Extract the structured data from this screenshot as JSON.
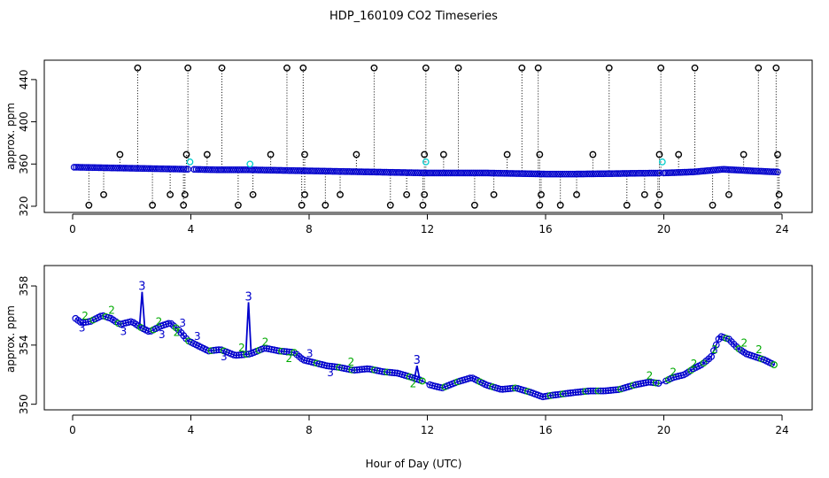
{
  "title": "HDP_160109  CO2 Timeseries",
  "xlabel": "Hour of Day (UTC)",
  "colors": {
    "raw": "#000000",
    "good": "#0000cc",
    "flag1": "#00cccc",
    "flag2": "#00aa00",
    "flag3": "#0000cc"
  },
  "chart_data": [
    {
      "type": "scatter",
      "ylabel": "approx. ppm",
      "xlim": [
        0,
        24
      ],
      "ylim": [
        320,
        455
      ],
      "xticks": [
        "0",
        "4",
        "8",
        "12",
        "16",
        "20",
        "24"
      ],
      "yticks": [
        "320",
        "360",
        "400",
        "440"
      ],
      "series": [
        {
          "role": "baseline",
          "x": [
            0.0,
            1.0,
            2.0,
            3.0,
            4.0,
            5.0,
            6.0,
            7.0,
            8.0,
            9.0,
            10.0,
            11.0,
            12.0,
            13.0,
            14.0,
            15.0,
            16.0,
            17.0,
            18.0,
            19.0,
            20.0,
            21.0,
            22.0,
            23.0,
            23.8
          ],
          "y": [
            357,
            356.5,
            356,
            355.5,
            355,
            354.5,
            354.5,
            354,
            353.5,
            353,
            352.5,
            352,
            351.5,
            351.5,
            351.5,
            351,
            350.5,
            350.5,
            350.8,
            351.2,
            351.5,
            352.5,
            355,
            353.5,
            352.5
          ]
        },
        {
          "role": "high-spikes",
          "x": [
            2.2,
            3.9,
            5.05,
            7.25,
            7.8,
            10.2,
            11.95,
            13.05,
            15.2,
            15.75,
            18.15,
            19.9,
            21.05,
            23.2,
            23.8
          ],
          "y": [
            451,
            451,
            451,
            451,
            451,
            451,
            451,
            451,
            451,
            451,
            451,
            451,
            451,
            451,
            451
          ]
        },
        {
          "role": "mid-spikes",
          "x": [
            1.6,
            3.85,
            4.55,
            6.7,
            7.85,
            9.6,
            11.9,
            12.55,
            14.7,
            15.8,
            17.6,
            19.85,
            20.5,
            22.7,
            23.85
          ],
          "y": [
            369,
            369,
            369,
            369,
            369,
            369,
            369,
            369,
            369,
            369,
            369,
            369,
            369,
            369,
            369
          ]
        },
        {
          "role": "low-spikes",
          "x": [
            0.55,
            1.05,
            2.7,
            3.3,
            3.75,
            3.8,
            5.6,
            6.1,
            7.75,
            7.85,
            8.55,
            9.05,
            10.75,
            11.3,
            11.85,
            11.9,
            13.6,
            14.25,
            15.8,
            15.85,
            16.5,
            17.05,
            18.75,
            19.35,
            19.8,
            19.85,
            21.65,
            22.2,
            23.85,
            23.9
          ],
          "y": [
            321,
            331,
            321,
            331,
            321,
            331,
            321,
            331,
            321,
            331,
            321,
            331,
            321,
            331,
            321,
            331,
            321,
            331,
            321,
            331,
            321,
            331,
            321,
            331,
            321,
            331,
            321,
            331,
            321,
            331
          ]
        }
      ]
    },
    {
      "type": "line",
      "ylabel": "approx. ppm",
      "xlim": [
        0,
        24
      ],
      "ylim": [
        349.8,
        359.2
      ],
      "xticks": [
        "0",
        "4",
        "8",
        "12",
        "16",
        "20",
        "24"
      ],
      "yticks": [
        "350",
        "354",
        "358"
      ],
      "series": [
        {
          "name": "",
          "x": [
            0.1,
            0.3,
            0.6,
            1.0,
            1.3,
            1.6,
            2.0,
            2.3,
            2.6,
            3.0,
            3.3,
            3.6,
            3.9,
            4.2,
            4.6,
            5.0,
            5.5,
            6.0,
            6.5,
            7.0,
            7.5,
            7.8,
            8.2,
            8.6,
            9.0,
            9.5,
            10.0,
            10.5,
            11.0,
            11.5,
            11.8,
            12.1,
            12.5,
            13.0,
            13.5,
            14.0,
            14.5,
            15.0,
            15.5,
            15.9,
            16.2,
            16.6,
            17.0,
            17.5,
            18.0,
            18.5,
            19.0,
            19.5,
            19.9,
            20.3,
            20.7,
            21.0,
            21.3,
            21.6,
            21.9,
            22.2,
            22.5,
            22.8,
            23.1,
            23.4,
            23.8
          ],
          "y": [
            355.8,
            355.5,
            355.6,
            356.0,
            355.8,
            355.4,
            355.6,
            355.2,
            354.9,
            355.3,
            355.5,
            355.0,
            354.3,
            354.0,
            353.6,
            353.7,
            353.3,
            353.4,
            353.8,
            353.6,
            353.5,
            353.0,
            352.8,
            352.6,
            352.5,
            352.3,
            352.4,
            352.2,
            352.1,
            351.8,
            351.6,
            351.3,
            351.1,
            351.5,
            351.8,
            351.3,
            351.0,
            351.1,
            350.8,
            350.5,
            350.6,
            350.7,
            350.8,
            350.9,
            350.9,
            351.0,
            351.3,
            351.5,
            351.4,
            351.8,
            352.0,
            352.4,
            352.7,
            353.2,
            354.6,
            354.4,
            353.8,
            353.4,
            353.2,
            353.0,
            352.6
          ]
        }
      ],
      "spikes": [
        {
          "label": "3",
          "x": 2.35,
          "y": 357.6
        },
        {
          "label": "3",
          "x": 5.95,
          "y": 356.9
        },
        {
          "label": "3",
          "x": 11.65,
          "y": 352.6
        }
      ],
      "flag_colors": {
        "2": "#00aa00",
        "3": "#0000cc"
      }
    }
  ]
}
